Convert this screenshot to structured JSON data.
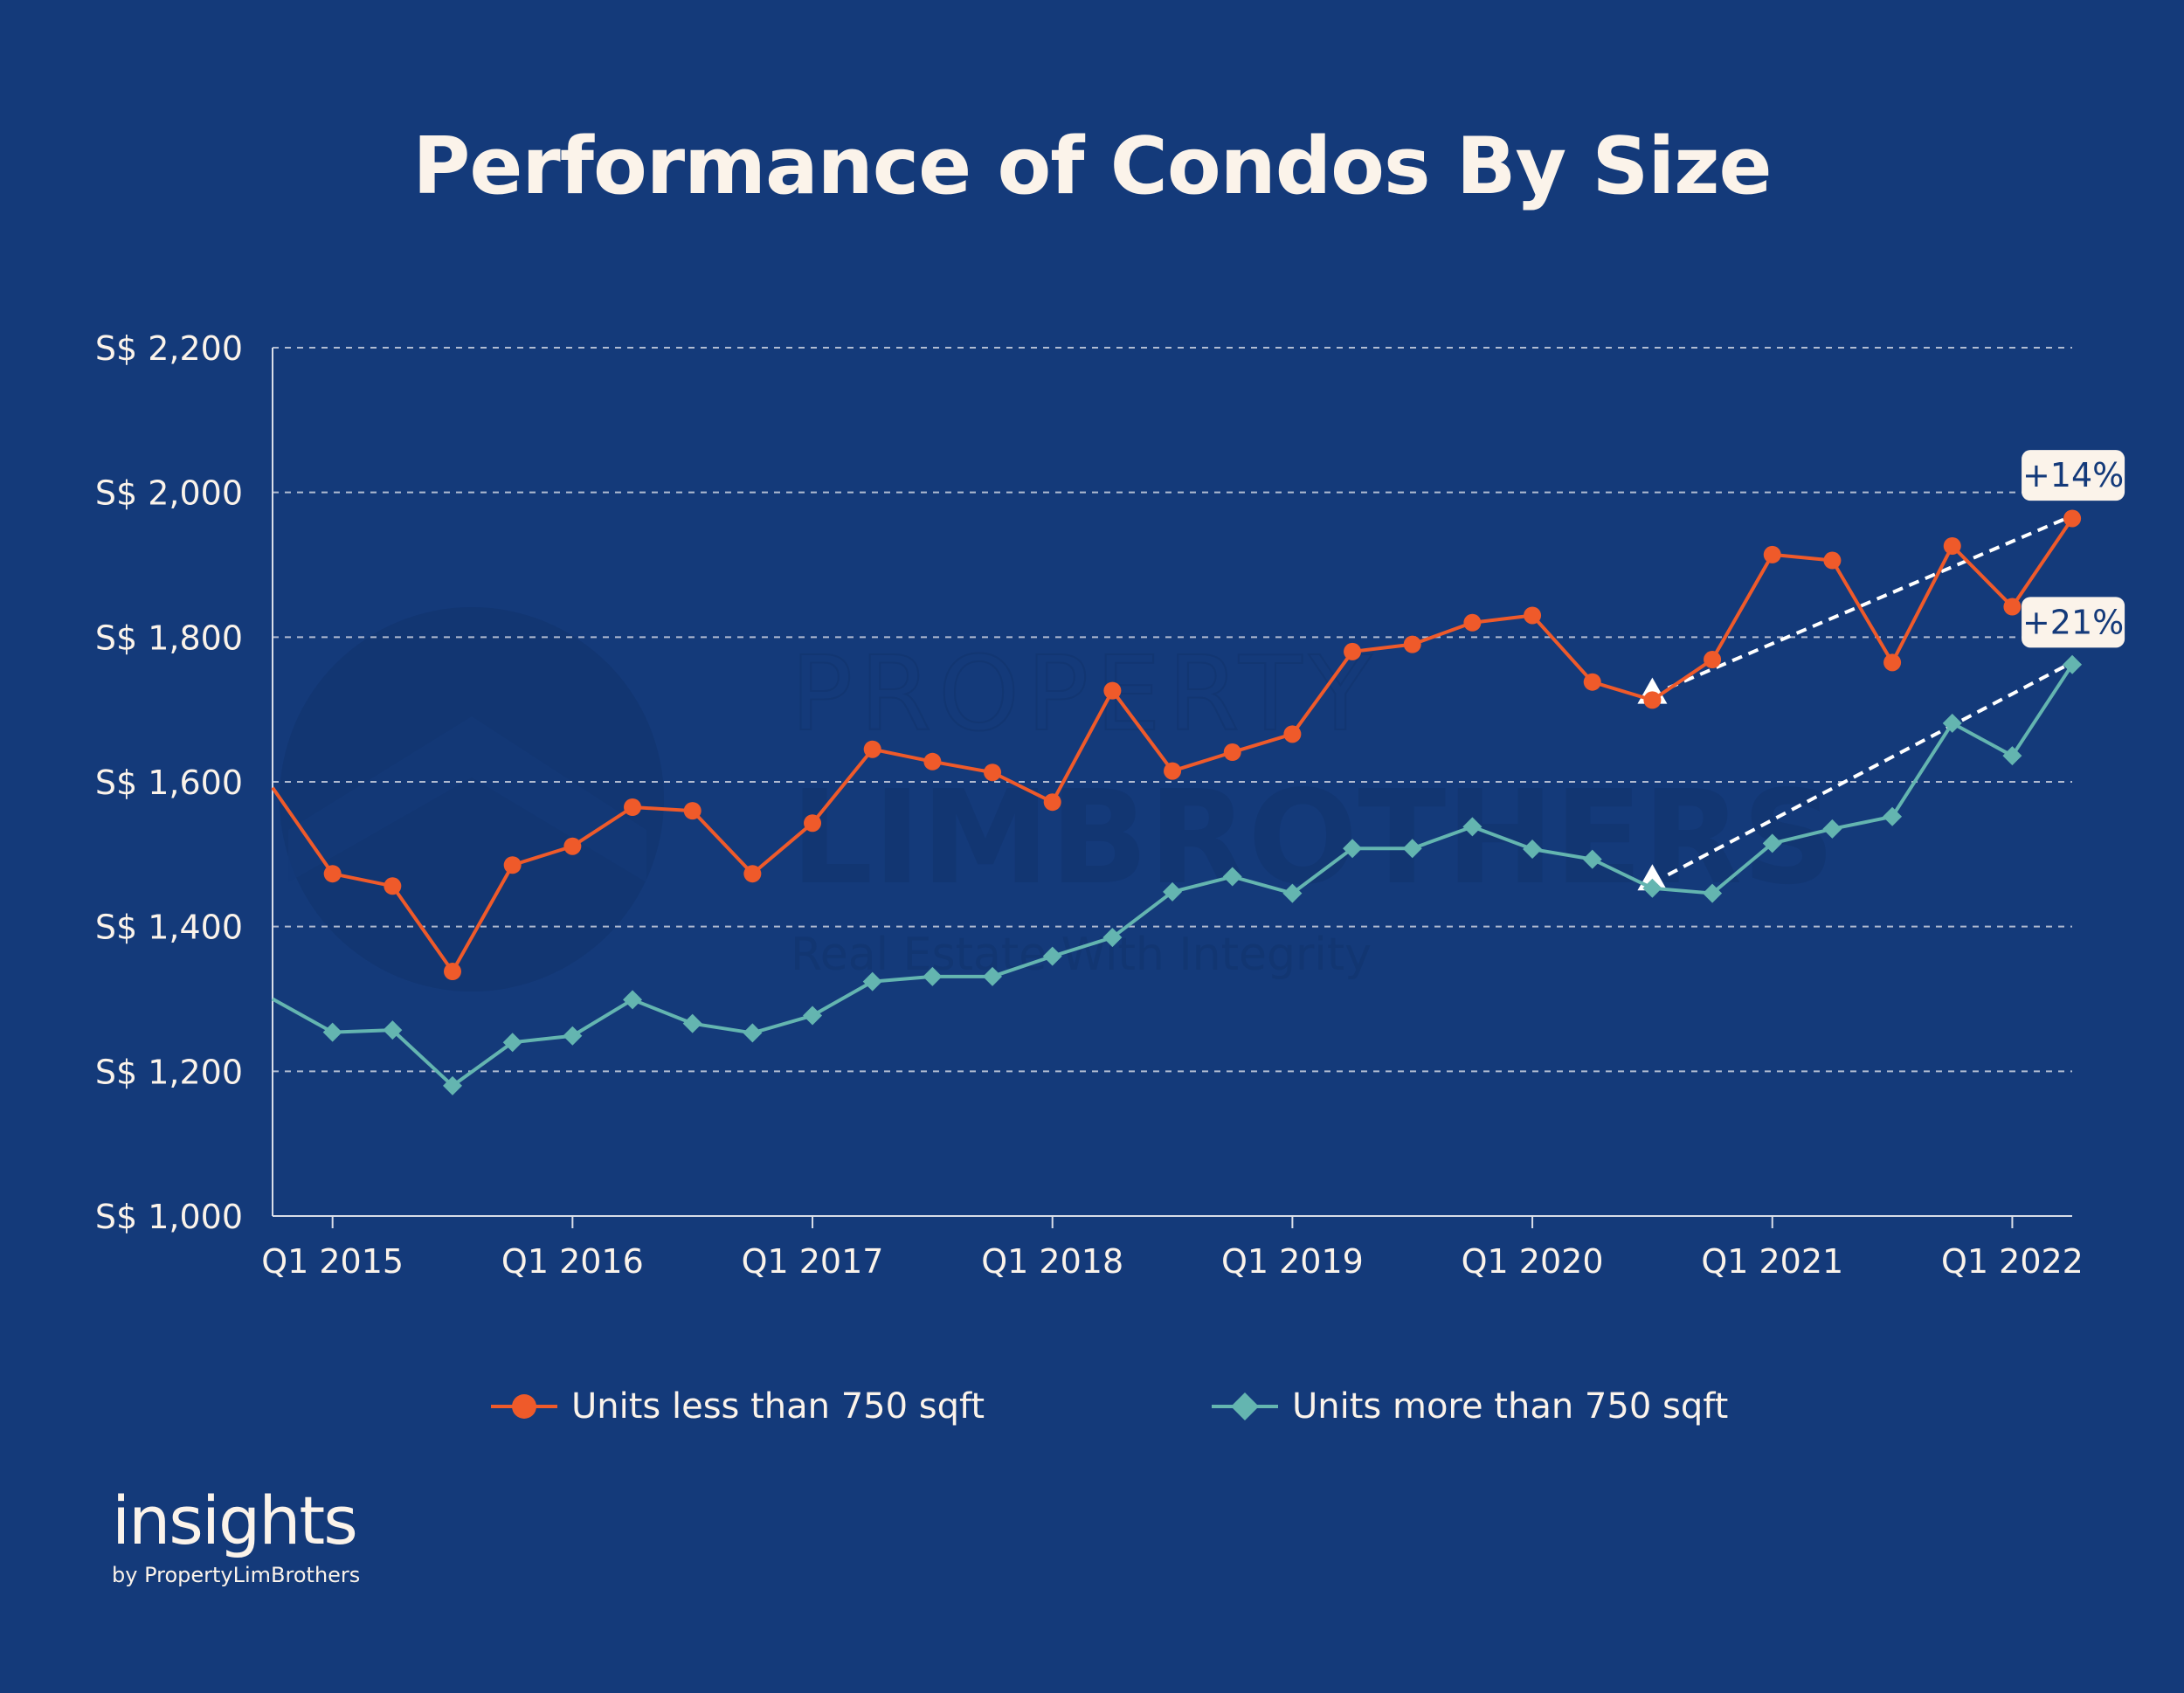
{
  "page": {
    "title": "Performance of Condos By Size",
    "background": "#143a7a",
    "text_color": "#fbf3ea"
  },
  "branding": {
    "logo_word": "insights",
    "logo_sub": "by PropertyLimBrothers",
    "watermark_lines": [
      "PROPERTY",
      "LIMBROTHERS",
      "Real Estate With Integrity"
    ]
  },
  "chart_data": {
    "type": "line",
    "title": "Performance of Condos By Size",
    "xlabel": "",
    "ylabel": "",
    "y_prefix": "S$ ",
    "ylim": [
      1000,
      2200
    ],
    "y_ticks": [
      1000,
      1200,
      1400,
      1600,
      1800,
      2000,
      2200
    ],
    "grid": true,
    "legend_position": "bottom-center",
    "x": [
      "Q4 2014",
      "Q1 2015",
      "Q2 2015",
      "Q3 2015",
      "Q4 2015",
      "Q1 2016",
      "Q2 2016",
      "Q3 2016",
      "Q4 2016",
      "Q1 2017",
      "Q2 2017",
      "Q3 2017",
      "Q4 2017",
      "Q1 2018",
      "Q2 2018",
      "Q3 2018",
      "Q4 2018",
      "Q1 2019",
      "Q2 2019",
      "Q3 2019",
      "Q4 2019",
      "Q1 2020",
      "Q2 2020",
      "Q3 2020",
      "Q4 2020",
      "Q1 2021",
      "Q2 2021",
      "Q3 2021",
      "Q4 2021",
      "Q1 2022",
      "Q2 2022"
    ],
    "x_tick_labels": [
      "Q1 2015",
      "Q1 2016",
      "Q1 2017",
      "Q1 2018",
      "Q1 2019",
      "Q1 2020",
      "Q1 2021",
      "Q1 2022"
    ],
    "series": [
      {
        "name": "Units less than 750 sqft",
        "color": "#ef5a2a",
        "marker": "circle",
        "values": [
          1592,
          1473,
          1456,
          1338,
          1485,
          1511,
          1565,
          1560,
          1473,
          1543,
          1645,
          1628,
          1613,
          1572,
          1726,
          1615,
          1641,
          1666,
          1780,
          1790,
          1820,
          1830,
          1738,
          1713,
          1769,
          1914,
          1906,
          1765,
          1926,
          1842,
          1964
        ]
      },
      {
        "name": "Units more than 750 sqft",
        "color": "#64b5b0",
        "marker": "diamond",
        "values": [
          1300,
          1254,
          1257,
          1180,
          1240,
          1249,
          1299,
          1266,
          1253,
          1277,
          1324,
          1331,
          1331,
          1359,
          1385,
          1448,
          1469,
          1446,
          1508,
          1508,
          1538,
          1507,
          1493,
          1453,
          1446,
          1515,
          1535,
          1552,
          1681,
          1636,
          1762
        ]
      }
    ],
    "annotations": [
      {
        "label": "+14%",
        "series": 0,
        "from": "Q3 2020",
        "to": "Q2 2022",
        "from_value": 1720,
        "to_value": 1968
      },
      {
        "label": "+21%",
        "series": 1,
        "from": "Q3 2020",
        "to": "Q2 2022",
        "from_value": 1462,
        "to_value": 1765
      }
    ]
  }
}
